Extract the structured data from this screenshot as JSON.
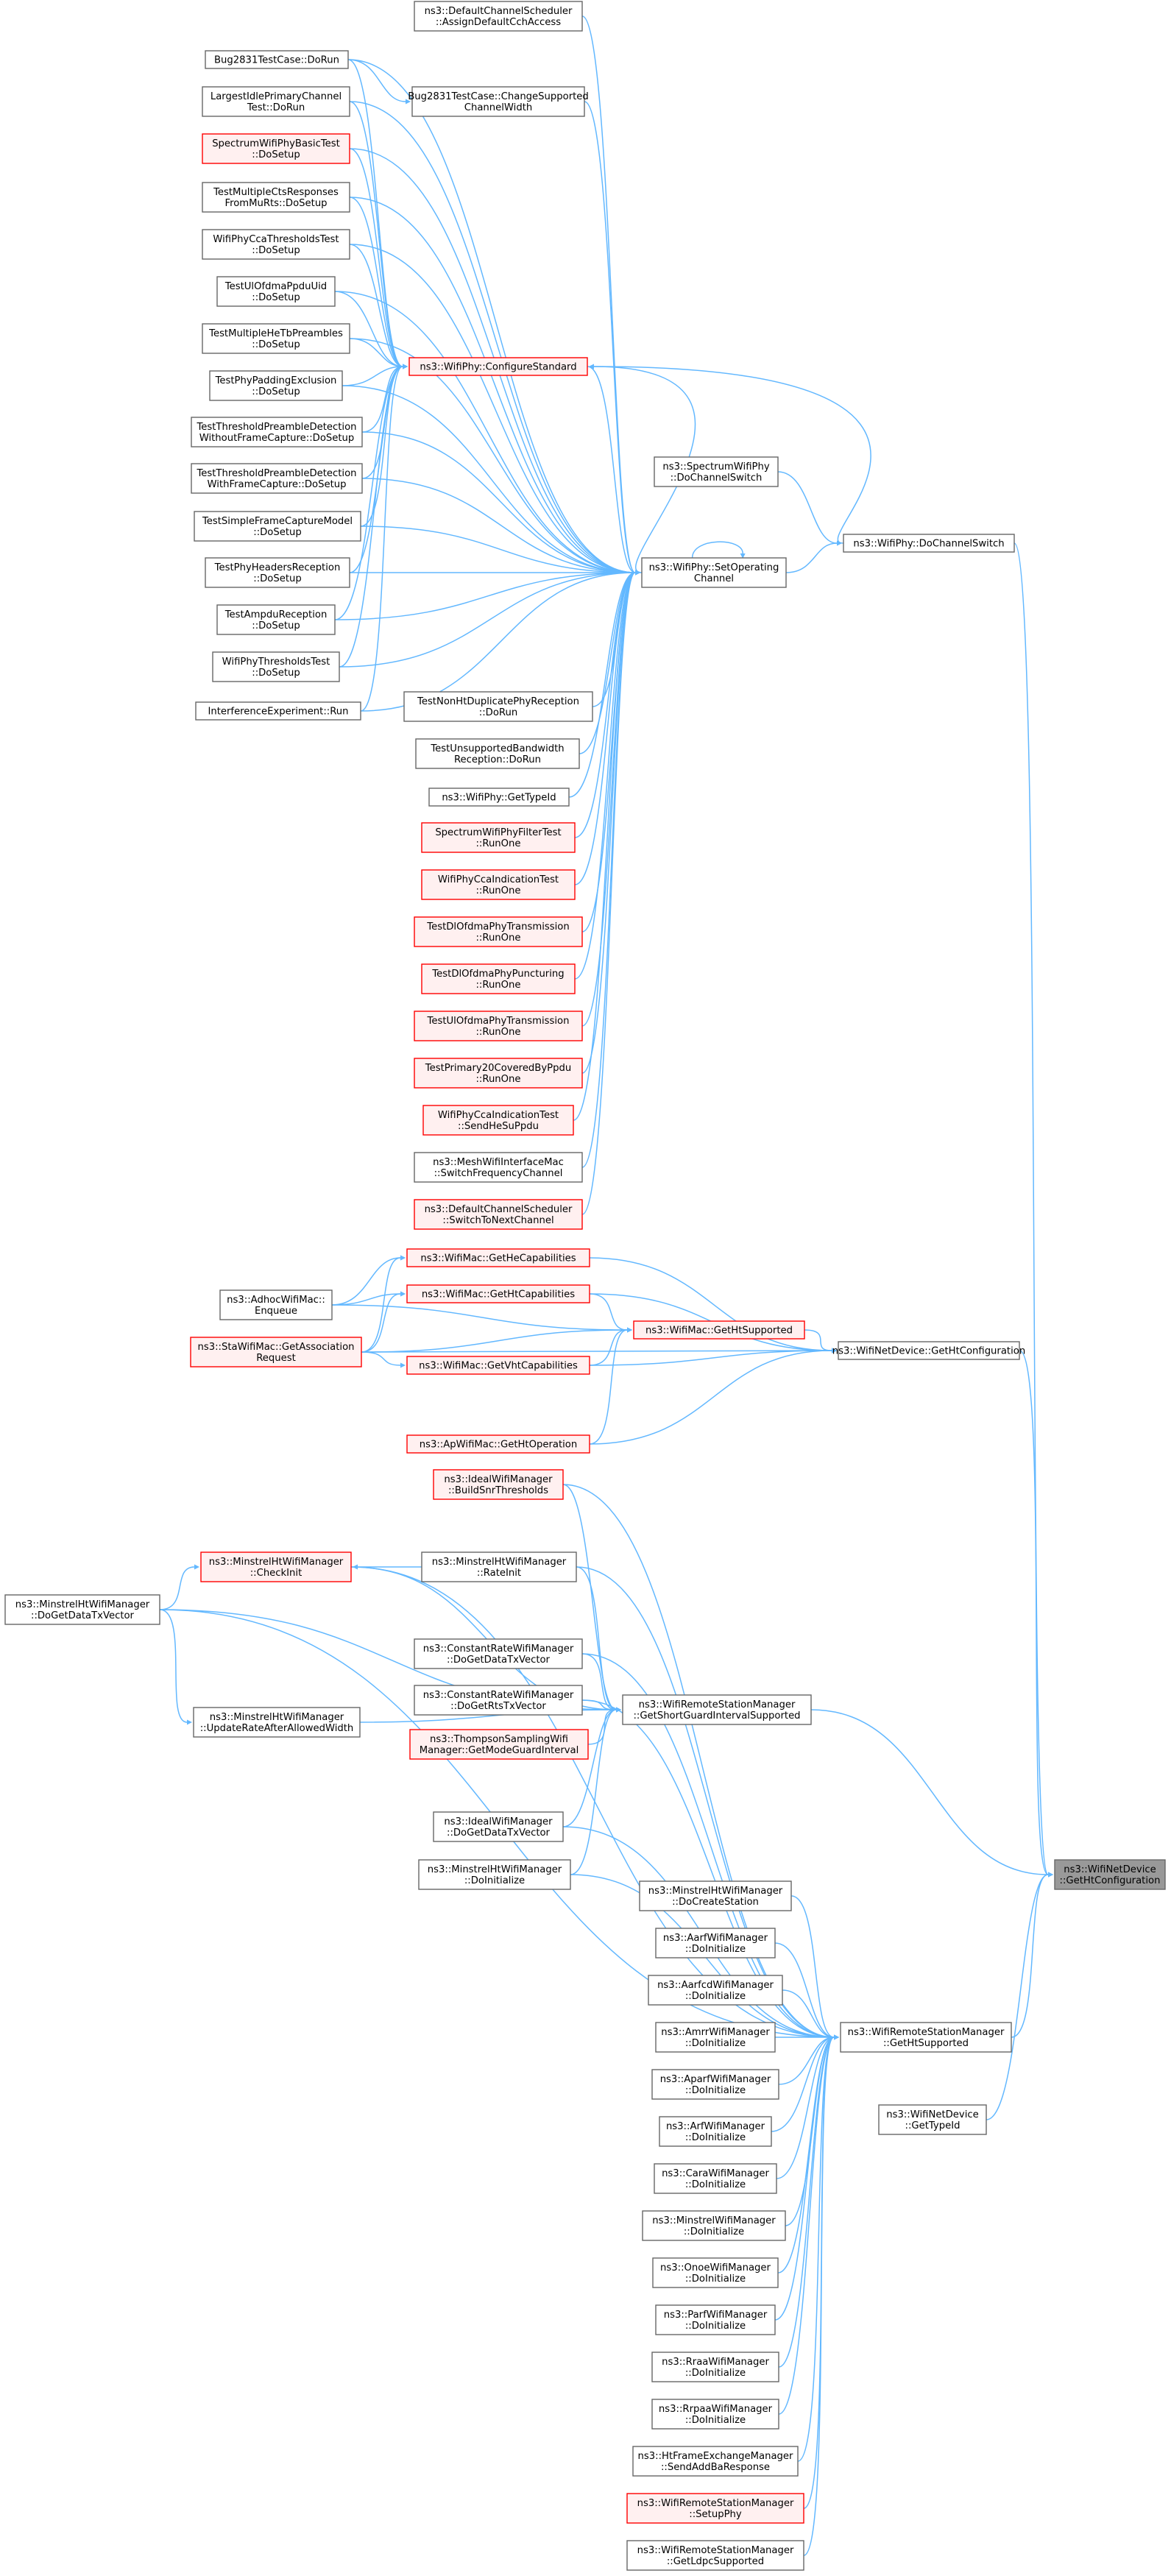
{
  "colors": {
    "edge": "#63b8ff",
    "border_normal": "#666666",
    "border_red": "#ff0000",
    "fill_normal": "#ffffff",
    "fill_red": "#fff0f0",
    "fill_root": "#999999",
    "border_root": "#666666"
  },
  "nodes": [
    {
      "id": "dcs_assign",
      "lines": [
        "ns3::DefaultChannelScheduler",
        "::AssignDefaultCchAccess"
      ],
      "style": "normal"
    },
    {
      "id": "bug_dorun",
      "lines": [
        "Bug2831TestCase::DoRun"
      ],
      "style": "normal"
    },
    {
      "id": "bug_change",
      "lines": [
        "Bug2831TestCase::ChangeSupported",
        "ChannelWidth"
      ],
      "style": "normal"
    },
    {
      "id": "largest",
      "lines": [
        "LargestIdlePrimaryChannel",
        "Test::DoRun"
      ],
      "style": "normal"
    },
    {
      "id": "spectrum_basic",
      "lines": [
        "SpectrumWifiPhyBasicTest",
        "::DoSetup"
      ],
      "style": "red"
    },
    {
      "id": "multi_cts",
      "lines": [
        "TestMultipleCtsResponses",
        "FromMuRts::DoSetup"
      ],
      "style": "normal"
    },
    {
      "id": "cca_thresh",
      "lines": [
        "WifiPhyCcaThresholdsTest",
        "::DoSetup"
      ],
      "style": "normal"
    },
    {
      "id": "ul_ppdu_uid",
      "lines": [
        "TestUlOfdmaPpduUid",
        "::DoSetup"
      ],
      "style": "normal"
    },
    {
      "id": "multi_he_tb",
      "lines": [
        "TestMultipleHeTbPreambles",
        "::DoSetup"
      ],
      "style": "normal"
    },
    {
      "id": "padding_excl",
      "lines": [
        "TestPhyPaddingExclusion",
        "::DoSetup"
      ],
      "style": "normal"
    },
    {
      "id": "configure_std",
      "lines": [
        "ns3::WifiPhy::ConfigureStandard"
      ],
      "style": "red"
    },
    {
      "id": "thresh_without",
      "lines": [
        "TestThresholdPreambleDetection",
        "WithoutFrameCapture::DoSetup"
      ],
      "style": "normal"
    },
    {
      "id": "thresh_with",
      "lines": [
        "TestThresholdPreambleDetection",
        "WithFrameCapture::DoSetup"
      ],
      "style": "normal"
    },
    {
      "id": "spectrum_dochsw",
      "lines": [
        "ns3::SpectrumWifiPhy",
        "::DoChannelSwitch"
      ],
      "style": "normal"
    },
    {
      "id": "simple_fc",
      "lines": [
        "TestSimpleFrameCaptureModel",
        "::DoSetup"
      ],
      "style": "normal"
    },
    {
      "id": "wifiphy_dochsw",
      "lines": [
        "ns3::WifiPhy::DoChannelSwitch"
      ],
      "style": "normal"
    },
    {
      "id": "phy_headers",
      "lines": [
        "TestPhyHeadersReception",
        "::DoSetup"
      ],
      "style": "normal"
    },
    {
      "id": "set_op_ch",
      "lines": [
        "ns3::WifiPhy::SetOperating",
        "Channel"
      ],
      "style": "normal"
    },
    {
      "id": "ampdu_recv",
      "lines": [
        "TestAmpduReception",
        "::DoSetup"
      ],
      "style": "normal"
    },
    {
      "id": "phy_thresh",
      "lines": [
        "WifiPhyThresholdsTest",
        "::DoSetup"
      ],
      "style": "normal"
    },
    {
      "id": "interf_run",
      "lines": [
        "InterferenceExperiment::Run"
      ],
      "style": "normal"
    },
    {
      "id": "nonht_dup",
      "lines": [
        "TestNonHtDuplicatePhyReception",
        "::DoRun"
      ],
      "style": "normal"
    },
    {
      "id": "unsupp_bw",
      "lines": [
        "TestUnsupportedBandwidth",
        "Reception::DoRun"
      ],
      "style": "normal"
    },
    {
      "id": "wifiphy_typeid",
      "lines": [
        "ns3::WifiPhy::GetTypeId"
      ],
      "style": "normal"
    },
    {
      "id": "spectrum_filter",
      "lines": [
        "SpectrumWifiPhyFilterTest",
        "::RunOne"
      ],
      "style": "red"
    },
    {
      "id": "cca_indication",
      "lines": [
        "WifiPhyCcaIndicationTest",
        "::RunOne"
      ],
      "style": "red"
    },
    {
      "id": "dl_ofdma_tx",
      "lines": [
        "TestDlOfdmaPhyTransmission",
        "::RunOne"
      ],
      "style": "red"
    },
    {
      "id": "dl_ofdma_punct",
      "lines": [
        "TestDlOfdmaPhyPuncturing",
        "::RunOne"
      ],
      "style": "red"
    },
    {
      "id": "ul_ofdma_tx",
      "lines": [
        "TestUlOfdmaPhyTransmission",
        "::RunOne"
      ],
      "style": "red"
    },
    {
      "id": "primary20",
      "lines": [
        "TestPrimary20CoveredByPpdu",
        "::RunOne"
      ],
      "style": "red"
    },
    {
      "id": "cca_send_he",
      "lines": [
        "WifiPhyCcaIndicationTest",
        "::SendHeSuPpdu"
      ],
      "style": "red"
    },
    {
      "id": "mesh_switch",
      "lines": [
        "ns3::MeshWifiInterfaceMac",
        "::SwitchFrequencyChannel"
      ],
      "style": "normal"
    },
    {
      "id": "dcs_switch",
      "lines": [
        "ns3::DefaultChannelScheduler",
        "::SwitchToNextChannel"
      ],
      "style": "red"
    },
    {
      "id": "mac_he_caps",
      "lines": [
        "ns3::WifiMac::GetHeCapabilities"
      ],
      "style": "red"
    },
    {
      "id": "adhoc_enqueue",
      "lines": [
        "ns3::AdhocWifiMac::",
        "Enqueue"
      ],
      "style": "normal"
    },
    {
      "id": "mac_ht_caps",
      "lines": [
        "ns3::WifiMac::GetHtCapabilities"
      ],
      "style": "red"
    },
    {
      "id": "mac_ht_supp",
      "lines": [
        "ns3::WifiMac::GetHtSupported"
      ],
      "style": "red"
    },
    {
      "id": "dev_ht_config",
      "lines": [
        "ns3::WifiNetDevice::GetHtConfiguration"
      ],
      "style": "normal"
    },
    {
      "id": "sta_assoc",
      "lines": [
        "ns3::StaWifiMac::GetAssociation",
        "Request"
      ],
      "style": "red"
    },
    {
      "id": "mac_vht_caps",
      "lines": [
        "ns3::WifiMac::GetVhtCapabilities"
      ],
      "style": "red"
    },
    {
      "id": "ap_ht_op",
      "lines": [
        "ns3::ApWifiMac::GetHtOperation"
      ],
      "style": "red"
    },
    {
      "id": "ideal_snr",
      "lines": [
        "ns3::IdealWifiManager",
        "::BuildSnrThresholds"
      ],
      "style": "red"
    },
    {
      "id": "minht_check",
      "lines": [
        "ns3::MinstrelHtWifiManager",
        "::CheckInit"
      ],
      "style": "red"
    },
    {
      "id": "minht_rate",
      "lines": [
        "ns3::MinstrelHtWifiManager",
        "::RateInit"
      ],
      "style": "normal"
    },
    {
      "id": "minht_dogdtv",
      "lines": [
        "ns3::MinstrelHtWifiManager",
        "::DoGetDataTxVector"
      ],
      "style": "normal"
    },
    {
      "id": "cr_data",
      "lines": [
        "ns3::ConstantRateWifiManager",
        "::DoGetDataTxVector"
      ],
      "style": "normal"
    },
    {
      "id": "cr_rts",
      "lines": [
        "ns3::ConstantRateWifiManager",
        "::DoGetRtsTxVector"
      ],
      "style": "normal"
    },
    {
      "id": "rsm_sgi",
      "lines": [
        "ns3::WifiRemoteStationManager",
        "::GetShortGuardIntervalSupported"
      ],
      "style": "normal"
    },
    {
      "id": "minht_update",
      "lines": [
        "ns3::MinstrelHtWifiManager",
        "::UpdateRateAfterAllowedWidth"
      ],
      "style": "normal"
    },
    {
      "id": "thompson",
      "lines": [
        "ns3::ThompsonSamplingWifi",
        "Manager::GetModeGuardInterval"
      ],
      "style": "red"
    },
    {
      "id": "ideal_dogdtv",
      "lines": [
        "ns3::IdealWifiManager",
        "::DoGetDataTxVector"
      ],
      "style": "normal"
    },
    {
      "id": "minht_init",
      "lines": [
        "ns3::MinstrelHtWifiManager",
        "::DoInitialize"
      ],
      "style": "normal"
    },
    {
      "id": "dev_ht_config_root",
      "lines": [
        "ns3::WifiNetDevice",
        "::GetHtConfiguration"
      ],
      "style": "root"
    },
    {
      "id": "minht_create",
      "lines": [
        "ns3::MinstrelHtWifiManager",
        "::DoCreateStation"
      ],
      "style": "normal"
    },
    {
      "id": "aarf_init",
      "lines": [
        "ns3::AarfWifiManager",
        "::DoInitialize"
      ],
      "style": "normal"
    },
    {
      "id": "aarfcd_init",
      "lines": [
        "ns3::AarfcdWifiManager",
        "::DoInitialize"
      ],
      "style": "normal"
    },
    {
      "id": "amrr_init",
      "lines": [
        "ns3::AmrrWifiManager",
        "::DoInitialize"
      ],
      "style": "normal"
    },
    {
      "id": "rsm_ht_supp",
      "lines": [
        "ns3::WifiRemoteStationManager",
        "::GetHtSupported"
      ],
      "style": "normal"
    },
    {
      "id": "aparf_init",
      "lines": [
        "ns3::AparfWifiManager",
        "::DoInitialize"
      ],
      "style": "normal"
    },
    {
      "id": "dev_typeid",
      "lines": [
        "ns3::WifiNetDevice",
        "::GetTypeId"
      ],
      "style": "normal"
    },
    {
      "id": "arf_init",
      "lines": [
        "ns3::ArfWifiManager",
        "::DoInitialize"
      ],
      "style": "normal"
    },
    {
      "id": "cara_init",
      "lines": [
        "ns3::CaraWifiManager",
        "::DoInitialize"
      ],
      "style": "normal"
    },
    {
      "id": "minstrel_init",
      "lines": [
        "ns3::MinstrelWifiManager",
        "::DoInitialize"
      ],
      "style": "normal"
    },
    {
      "id": "onoe_init",
      "lines": [
        "ns3::OnoeWifiManager",
        "::DoInitialize"
      ],
      "style": "normal"
    },
    {
      "id": "parf_init",
      "lines": [
        "ns3::ParfWifiManager",
        "::DoInitialize"
      ],
      "style": "normal"
    },
    {
      "id": "rraa_init",
      "lines": [
        "ns3::RraaWifiManager",
        "::DoInitialize"
      ],
      "style": "normal"
    },
    {
      "id": "rrpaa_init",
      "lines": [
        "ns3::RrpaaWifiManager",
        "::DoInitialize"
      ],
      "style": "normal"
    },
    {
      "id": "htfem_addba",
      "lines": [
        "ns3::HtFrameExchangeManager",
        "::SendAddBaResponse"
      ],
      "style": "normal"
    },
    {
      "id": "rsm_setup",
      "lines": [
        "ns3::WifiRemoteStationManager",
        "::SetupPhy"
      ],
      "style": "red"
    },
    {
      "id": "rsm_ldpc",
      "lines": [
        "ns3::WifiRemoteStationManager",
        "::GetLdpcSupported"
      ],
      "style": "normal"
    }
  ],
  "edges": [
    [
      "dcs_assign",
      "set_op_ch"
    ],
    [
      "bug_dorun",
      "bug_change"
    ],
    [
      "bug_dorun",
      "configure_std"
    ],
    [
      "bug_dorun",
      "set_op_ch"
    ],
    [
      "bug_change",
      "set_op_ch"
    ],
    [
      "largest",
      "configure_std"
    ],
    [
      "largest",
      "set_op_ch"
    ],
    [
      "spectrum_basic",
      "configure_std"
    ],
    [
      "spectrum_basic",
      "set_op_ch"
    ],
    [
      "multi_cts",
      "configure_std"
    ],
    [
      "multi_cts",
      "set_op_ch"
    ],
    [
      "cca_thresh",
      "configure_std"
    ],
    [
      "cca_thresh",
      "set_op_ch"
    ],
    [
      "ul_ppdu_uid",
      "configure_std"
    ],
    [
      "ul_ppdu_uid",
      "set_op_ch"
    ],
    [
      "multi_he_tb",
      "configure_std"
    ],
    [
      "multi_he_tb",
      "set_op_ch"
    ],
    [
      "padding_excl",
      "configure_std"
    ],
    [
      "padding_excl",
      "set_op_ch"
    ],
    [
      "thresh_without",
      "configure_std"
    ],
    [
      "thresh_without",
      "set_op_ch"
    ],
    [
      "thresh_with",
      "configure_std"
    ],
    [
      "thresh_with",
      "set_op_ch"
    ],
    [
      "simple_fc",
      "configure_std"
    ],
    [
      "simple_fc",
      "set_op_ch"
    ],
    [
      "phy_headers",
      "configure_std"
    ],
    [
      "phy_headers",
      "set_op_ch"
    ],
    [
      "ampdu_recv",
      "configure_std"
    ],
    [
      "ampdu_recv",
      "set_op_ch"
    ],
    [
      "phy_thresh",
      "configure_std"
    ],
    [
      "phy_thresh",
      "set_op_ch"
    ],
    [
      "interf_run",
      "configure_std"
    ],
    [
      "interf_run",
      "set_op_ch"
    ],
    [
      "configure_std",
      "set_op_ch"
    ],
    [
      "set_op_ch",
      "configure_std"
    ],
    [
      "set_op_ch",
      "set_op_ch"
    ],
    [
      "set_op_ch",
      "wifiphy_dochsw"
    ],
    [
      "spectrum_dochsw",
      "wifiphy_dochsw"
    ],
    [
      "wifiphy_dochsw",
      "configure_std"
    ],
    [
      "nonht_dup",
      "set_op_ch"
    ],
    [
      "unsupp_bw",
      "set_op_ch"
    ],
    [
      "wifiphy_typeid",
      "set_op_ch"
    ],
    [
      "spectrum_filter",
      "set_op_ch"
    ],
    [
      "cca_indication",
      "set_op_ch"
    ],
    [
      "dl_ofdma_tx",
      "set_op_ch"
    ],
    [
      "dl_ofdma_punct",
      "set_op_ch"
    ],
    [
      "ul_ofdma_tx",
      "set_op_ch"
    ],
    [
      "primary20",
      "set_op_ch"
    ],
    [
      "cca_send_he",
      "set_op_ch"
    ],
    [
      "mesh_switch",
      "set_op_ch"
    ],
    [
      "dcs_switch",
      "set_op_ch"
    ],
    [
      "wifiphy_dochsw",
      "dev_ht_config_root"
    ],
    [
      "adhoc_enqueue",
      "mac_he_caps"
    ],
    [
      "adhoc_enqueue",
      "mac_ht_caps"
    ],
    [
      "sta_assoc",
      "mac_he_caps"
    ],
    [
      "sta_assoc",
      "mac_ht_caps"
    ],
    [
      "sta_assoc",
      "mac_vht_caps"
    ],
    [
      "mac_ht_caps",
      "mac_ht_supp"
    ],
    [
      "mac_vht_caps",
      "mac_ht_supp"
    ],
    [
      "sta_assoc",
      "mac_ht_supp"
    ],
    [
      "adhoc_enqueue",
      "mac_ht_supp"
    ],
    [
      "ap_ht_op",
      "mac_ht_supp"
    ],
    [
      "mac_he_caps",
      "dev_ht_config"
    ],
    [
      "mac_ht_caps",
      "dev_ht_config"
    ],
    [
      "mac_ht_supp",
      "dev_ht_config"
    ],
    [
      "mac_vht_caps",
      "dev_ht_config"
    ],
    [
      "sta_assoc",
      "dev_ht_config"
    ],
    [
      "ap_ht_op",
      "dev_ht_config"
    ],
    [
      "dev_ht_config",
      "dev_ht_config_root"
    ],
    [
      "ideal_snr",
      "rsm_sgi"
    ],
    [
      "minht_check",
      "rsm_sgi"
    ],
    [
      "minht_rate",
      "minht_check"
    ],
    [
      "minht_dogdtv",
      "minht_check"
    ],
    [
      "minht_dogdtv",
      "minht_update"
    ],
    [
      "minht_dogdtv",
      "rsm_sgi"
    ],
    [
      "cr_data",
      "rsm_sgi"
    ],
    [
      "cr_rts",
      "rsm_sgi"
    ],
    [
      "thompson",
      "rsm_sgi"
    ],
    [
      "ideal_dogdtv",
      "rsm_sgi"
    ],
    [
      "minht_init",
      "rsm_sgi"
    ],
    [
      "minht_update",
      "rsm_sgi"
    ],
    [
      "minht_rate",
      "rsm_sgi"
    ],
    [
      "rsm_sgi",
      "dev_ht_config_root"
    ],
    [
      "ideal_snr",
      "rsm_ht_supp"
    ],
    [
      "minht_check",
      "rsm_ht_supp"
    ],
    [
      "minht_rate",
      "rsm_ht_supp"
    ],
    [
      "minht_dogdtv",
      "rsm_ht_supp"
    ],
    [
      "cr_data",
      "rsm_ht_supp"
    ],
    [
      "cr_rts",
      "rsm_ht_supp"
    ],
    [
      "ideal_dogdtv",
      "rsm_ht_supp"
    ],
    [
      "minht_init",
      "rsm_ht_supp"
    ],
    [
      "minht_create",
      "rsm_ht_supp"
    ],
    [
      "aarf_init",
      "rsm_ht_supp"
    ],
    [
      "aarfcd_init",
      "rsm_ht_supp"
    ],
    [
      "amrr_init",
      "rsm_ht_supp"
    ],
    [
      "aparf_init",
      "rsm_ht_supp"
    ],
    [
      "arf_init",
      "rsm_ht_supp"
    ],
    [
      "cara_init",
      "rsm_ht_supp"
    ],
    [
      "minstrel_init",
      "rsm_ht_supp"
    ],
    [
      "onoe_init",
      "rsm_ht_supp"
    ],
    [
      "parf_init",
      "rsm_ht_supp"
    ],
    [
      "rraa_init",
      "rsm_ht_supp"
    ],
    [
      "rrpaa_init",
      "rsm_ht_supp"
    ],
    [
      "htfem_addba",
      "rsm_ht_supp"
    ],
    [
      "rsm_setup",
      "rsm_ht_supp"
    ],
    [
      "rsm_ldpc",
      "rsm_ht_supp"
    ],
    [
      "rsm_ht_supp",
      "dev_ht_config_root"
    ],
    [
      "dev_typeid",
      "dev_ht_config_root"
    ]
  ]
}
